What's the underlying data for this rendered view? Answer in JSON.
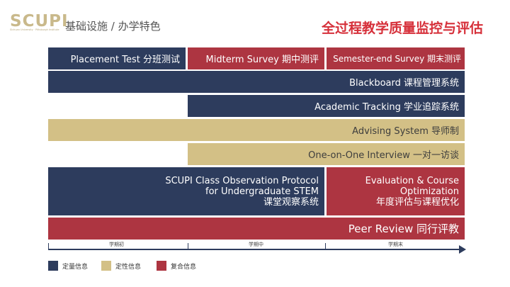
{
  "header": {
    "logo_text": "SCUPI",
    "logo_subtext": "Sichuan University · Pittsburgh Institute",
    "section_title": "基础设施 / 办学特色",
    "main_title": "全过程教学质量监控与评估"
  },
  "bars": {
    "placement_test": "Placement Test 分班测试",
    "midterm_survey": "Midterm Survey 期中测评",
    "semester_end_survey": "Semester-end Survey 期末测评",
    "blackboard": "Blackboard 课程管理系统",
    "academic_tracking": "Academic Tracking 学业追踪系统",
    "advising_system": "Advising System 导师制",
    "one_on_one": "One-on-One Interview 一对一访谈",
    "class_observation": {
      "line1": "SCUPI Class Observation Protocol",
      "line2": "for Undergraduate STEM",
      "line3": "课堂观察系统"
    },
    "evaluation": {
      "line1": "Evaluation & Course",
      "line2": "Optimization",
      "line3": "年度评估与课程优化"
    },
    "peer_review": "Peer Review 同行评教"
  },
  "timeline": {
    "phases": [
      "学期初",
      "学期中",
      "学期末"
    ]
  },
  "legend": [
    {
      "label": "定量信息",
      "color": "#2d3c5d"
    },
    {
      "label": "定性信息",
      "color": "#d3c086"
    },
    {
      "label": "复合信息",
      "color": "#ad3541"
    }
  ]
}
